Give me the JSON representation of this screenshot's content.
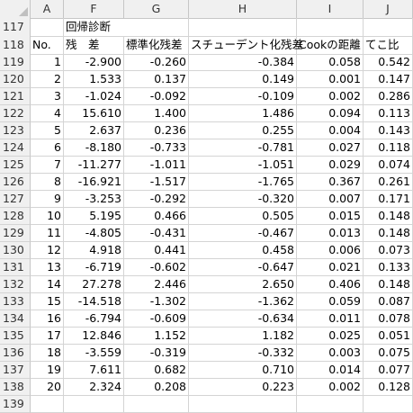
{
  "columns": [
    "A",
    "F",
    "G",
    "H",
    "I",
    "J"
  ],
  "row117": {
    "rownum": "117",
    "f": "回帰診断"
  },
  "row118": {
    "rownum": "118",
    "a": "No.",
    "f": "残　差",
    "g": "標準化残差",
    "h": "スチューデント化残差",
    "i": "Cookの距離",
    "j": "てこ比"
  },
  "data_rows": [
    {
      "rownum": "119",
      "no": "1",
      "resid": "-2.900",
      "std": "-0.260",
      "stud": "-0.384",
      "cook": "0.058",
      "lev": "0.542"
    },
    {
      "rownum": "120",
      "no": "2",
      "resid": "1.533",
      "std": "0.137",
      "stud": "0.149",
      "cook": "0.001",
      "lev": "0.147"
    },
    {
      "rownum": "121",
      "no": "3",
      "resid": "-1.024",
      "std": "-0.092",
      "stud": "-0.109",
      "cook": "0.002",
      "lev": "0.286"
    },
    {
      "rownum": "122",
      "no": "4",
      "resid": "15.610",
      "std": "1.400",
      "stud": "1.486",
      "cook": "0.094",
      "lev": "0.113"
    },
    {
      "rownum": "123",
      "no": "5",
      "resid": "2.637",
      "std": "0.236",
      "stud": "0.255",
      "cook": "0.004",
      "lev": "0.143"
    },
    {
      "rownum": "124",
      "no": "6",
      "resid": "-8.180",
      "std": "-0.733",
      "stud": "-0.781",
      "cook": "0.027",
      "lev": "0.118"
    },
    {
      "rownum": "125",
      "no": "7",
      "resid": "-11.277",
      "std": "-1.011",
      "stud": "-1.051",
      "cook": "0.029",
      "lev": "0.074"
    },
    {
      "rownum": "126",
      "no": "8",
      "resid": "-16.921",
      "std": "-1.517",
      "stud": "-1.765",
      "cook": "0.367",
      "lev": "0.261"
    },
    {
      "rownum": "127",
      "no": "9",
      "resid": "-3.253",
      "std": "-0.292",
      "stud": "-0.320",
      "cook": "0.007",
      "lev": "0.171"
    },
    {
      "rownum": "128",
      "no": "10",
      "resid": "5.195",
      "std": "0.466",
      "stud": "0.505",
      "cook": "0.015",
      "lev": "0.148"
    },
    {
      "rownum": "129",
      "no": "11",
      "resid": "-4.805",
      "std": "-0.431",
      "stud": "-0.467",
      "cook": "0.013",
      "lev": "0.148"
    },
    {
      "rownum": "130",
      "no": "12",
      "resid": "4.918",
      "std": "0.441",
      "stud": "0.458",
      "cook": "0.006",
      "lev": "0.073"
    },
    {
      "rownum": "131",
      "no": "13",
      "resid": "-6.719",
      "std": "-0.602",
      "stud": "-0.647",
      "cook": "0.021",
      "lev": "0.133"
    },
    {
      "rownum": "132",
      "no": "14",
      "resid": "27.278",
      "std": "2.446",
      "stud": "2.650",
      "cook": "0.406",
      "lev": "0.148"
    },
    {
      "rownum": "133",
      "no": "15",
      "resid": "-14.518",
      "std": "-1.302",
      "stud": "-1.362",
      "cook": "0.059",
      "lev": "0.087"
    },
    {
      "rownum": "134",
      "no": "16",
      "resid": "-6.794",
      "std": "-0.609",
      "stud": "-0.634",
      "cook": "0.011",
      "lev": "0.078"
    },
    {
      "rownum": "135",
      "no": "17",
      "resid": "12.846",
      "std": "1.152",
      "stud": "1.182",
      "cook": "0.025",
      "lev": "0.051"
    },
    {
      "rownum": "136",
      "no": "18",
      "resid": "-3.559",
      "std": "-0.319",
      "stud": "-0.332",
      "cook": "0.003",
      "lev": "0.075"
    },
    {
      "rownum": "137",
      "no": "19",
      "resid": "7.611",
      "std": "0.682",
      "stud": "0.710",
      "cook": "0.014",
      "lev": "0.077"
    },
    {
      "rownum": "138",
      "no": "20",
      "resid": "2.324",
      "std": "0.208",
      "stud": "0.223",
      "cook": "0.002",
      "lev": "0.128"
    }
  ],
  "row139": {
    "rownum": "139"
  }
}
